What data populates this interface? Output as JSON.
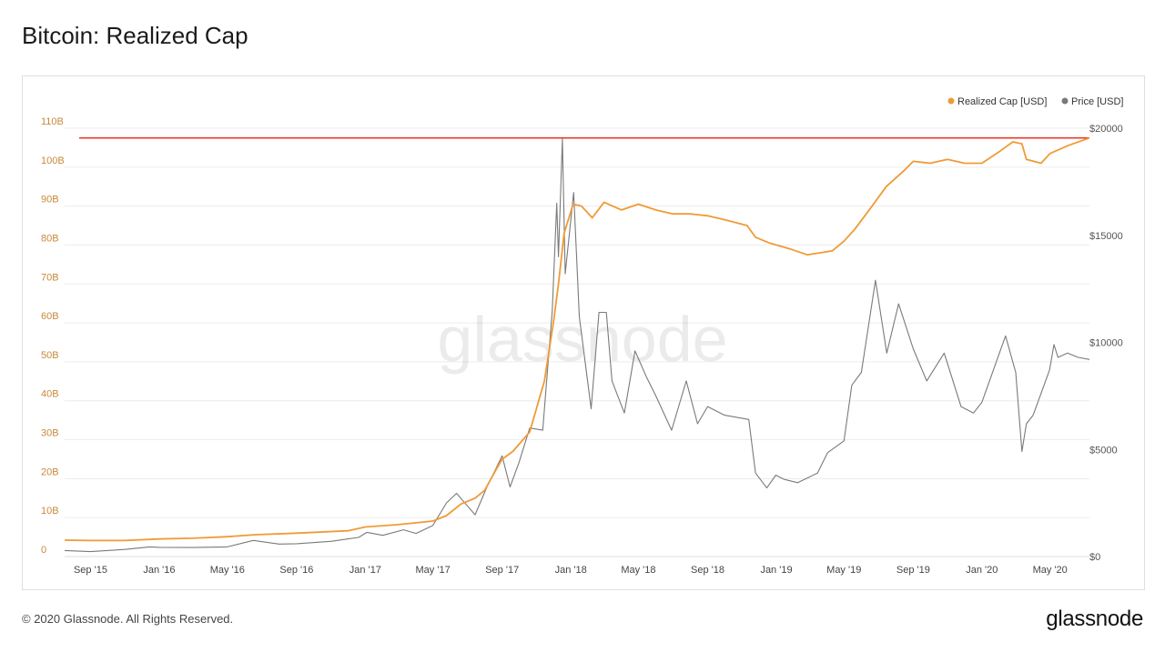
{
  "title": "Bitcoin: Realized Cap",
  "footer": {
    "copyright": "© 2020 Glassnode. All Rights Reserved.",
    "logo": "glassnode"
  },
  "watermark": "glassnode",
  "colors": {
    "realized_cap": "#f09a37",
    "price": "#7a7a7a",
    "reference_line": "#e8392d",
    "left_axis_text": "#c8893a",
    "right_axis_text": "#555555",
    "grid": "#ececec"
  },
  "chart_data": {
    "type": "line",
    "title": "Bitcoin: Realized Cap",
    "legend": [
      "Realized Cap [USD]",
      "Price [USD]"
    ],
    "legend_position": "top-right",
    "grid": true,
    "x_range": [
      "2015-07-17",
      "2020-07-10"
    ],
    "x_ticks": [
      {
        "date": "2015-09-01",
        "label": "Sep '15"
      },
      {
        "date": "2016-01-01",
        "label": "Jan '16"
      },
      {
        "date": "2016-05-01",
        "label": "May '16"
      },
      {
        "date": "2016-09-01",
        "label": "Sep '16"
      },
      {
        "date": "2017-01-01",
        "label": "Jan '17"
      },
      {
        "date": "2017-05-01",
        "label": "May '17"
      },
      {
        "date": "2017-09-01",
        "label": "Sep '17"
      },
      {
        "date": "2018-01-01",
        "label": "Jan '18"
      },
      {
        "date": "2018-05-01",
        "label": "May '18"
      },
      {
        "date": "2018-09-01",
        "label": "Sep '18"
      },
      {
        "date": "2019-01-01",
        "label": "Jan '19"
      },
      {
        "date": "2019-05-01",
        "label": "May '19"
      },
      {
        "date": "2019-09-01",
        "label": "Sep '19"
      },
      {
        "date": "2020-01-01",
        "label": "Jan '20"
      },
      {
        "date": "2020-05-01",
        "label": "May '20"
      }
    ],
    "y_left": {
      "range": [
        0,
        110
      ],
      "unit": "billion USD",
      "ticks": [
        {
          "value": 0,
          "label": "0"
        },
        {
          "value": 10,
          "label": "10B"
        },
        {
          "value": 20,
          "label": "20B"
        },
        {
          "value": 30,
          "label": "30B"
        },
        {
          "value": 40,
          "label": "40B"
        },
        {
          "value": 50,
          "label": "50B"
        },
        {
          "value": 60,
          "label": "60B"
        },
        {
          "value": 70,
          "label": "70B"
        },
        {
          "value": 80,
          "label": "80B"
        },
        {
          "value": 90,
          "label": "90B"
        },
        {
          "value": 100,
          "label": "100B"
        },
        {
          "value": 110,
          "label": "110B"
        }
      ]
    },
    "y_right": {
      "range": [
        0,
        20000
      ],
      "ticks": [
        {
          "value": 0,
          "label": "$0"
        },
        {
          "value": 5000,
          "label": "$5000"
        },
        {
          "value": 10000,
          "label": "$10000"
        },
        {
          "value": 15000,
          "label": "$15000"
        },
        {
          "value": 20000,
          "label": "$20000"
        }
      ]
    },
    "reference_line": {
      "value": 107.5,
      "axis": "left"
    },
    "series": [
      {
        "name": "Realized Cap [USD]",
        "axis": "left",
        "points": [
          [
            "2015-07-17",
            4.2
          ],
          [
            "2015-09-01",
            4.1
          ],
          [
            "2015-11-01",
            4.1
          ],
          [
            "2016-01-01",
            4.5
          ],
          [
            "2016-03-01",
            4.7
          ],
          [
            "2016-05-01",
            5.1
          ],
          [
            "2016-06-20",
            5.6
          ],
          [
            "2016-09-01",
            6.0
          ],
          [
            "2016-12-01",
            6.6
          ],
          [
            "2017-01-01",
            7.6
          ],
          [
            "2017-03-01",
            8.2
          ],
          [
            "2017-05-01",
            9.1
          ],
          [
            "2017-05-25",
            10.5
          ],
          [
            "2017-06-20",
            13.5
          ],
          [
            "2017-07-15",
            15.0
          ],
          [
            "2017-08-01",
            17.0
          ],
          [
            "2017-08-20",
            22.0
          ],
          [
            "2017-09-01",
            25.0
          ],
          [
            "2017-09-20",
            27.0
          ],
          [
            "2017-10-20",
            32.0
          ],
          [
            "2017-11-15",
            45.0
          ],
          [
            "2017-12-01",
            60.0
          ],
          [
            "2017-12-10",
            70.0
          ],
          [
            "2017-12-20",
            83.0
          ],
          [
            "2018-01-05",
            90.5
          ],
          [
            "2018-01-20",
            90.0
          ],
          [
            "2018-02-08",
            87.0
          ],
          [
            "2018-03-01",
            91.0
          ],
          [
            "2018-04-01",
            89.0
          ],
          [
            "2018-05-01",
            90.5
          ],
          [
            "2018-06-01",
            89.0
          ],
          [
            "2018-07-01",
            88.0
          ],
          [
            "2018-08-01",
            88.0
          ],
          [
            "2018-09-01",
            87.5
          ],
          [
            "2018-10-01",
            86.5
          ],
          [
            "2018-11-10",
            85.0
          ],
          [
            "2018-11-25",
            82.0
          ],
          [
            "2018-12-20",
            80.5
          ],
          [
            "2019-01-25",
            79.0
          ],
          [
            "2019-02-25",
            77.5
          ],
          [
            "2019-03-20",
            78.0
          ],
          [
            "2019-04-10",
            78.5
          ],
          [
            "2019-05-01",
            81.0
          ],
          [
            "2019-05-20",
            84.0
          ],
          [
            "2019-06-20",
            90.0
          ],
          [
            "2019-07-15",
            95.0
          ],
          [
            "2019-08-15",
            99.0
          ],
          [
            "2019-09-01",
            101.5
          ],
          [
            "2019-10-01",
            101.0
          ],
          [
            "2019-11-01",
            102.0
          ],
          [
            "2019-12-01",
            101.0
          ],
          [
            "2020-01-01",
            101.0
          ],
          [
            "2020-02-01",
            104.0
          ],
          [
            "2020-02-25",
            106.5
          ],
          [
            "2020-03-12",
            106.0
          ],
          [
            "2020-03-20",
            102.0
          ],
          [
            "2020-04-15",
            101.0
          ],
          [
            "2020-05-01",
            103.5
          ],
          [
            "2020-06-01",
            105.5
          ],
          [
            "2020-07-10",
            107.5
          ]
        ]
      },
      {
        "name": "Price [USD]",
        "axis": "right",
        "points": [
          [
            "2015-07-17",
            280
          ],
          [
            "2015-09-01",
            230
          ],
          [
            "2015-11-01",
            330
          ],
          [
            "2015-12-15",
            450
          ],
          [
            "2016-01-01",
            430
          ],
          [
            "2016-03-01",
            420
          ],
          [
            "2016-05-01",
            450
          ],
          [
            "2016-06-16",
            750
          ],
          [
            "2016-08-01",
            580
          ],
          [
            "2016-09-01",
            600
          ],
          [
            "2016-11-01",
            710
          ],
          [
            "2016-12-20",
            890
          ],
          [
            "2017-01-04",
            1130
          ],
          [
            "2017-02-01",
            990
          ],
          [
            "2017-03-10",
            1250
          ],
          [
            "2017-04-01",
            1080
          ],
          [
            "2017-05-01",
            1450
          ],
          [
            "2017-05-25",
            2500
          ],
          [
            "2017-06-12",
            2950
          ],
          [
            "2017-07-15",
            1950
          ],
          [
            "2017-08-05",
            3250
          ],
          [
            "2017-09-01",
            4700
          ],
          [
            "2017-09-15",
            3250
          ],
          [
            "2017-10-01",
            4400
          ],
          [
            "2017-10-20",
            6000
          ],
          [
            "2017-11-12",
            5900
          ],
          [
            "2017-11-29",
            11500
          ],
          [
            "2017-12-07",
            16500
          ],
          [
            "2017-12-10",
            14000
          ],
          [
            "2017-12-17",
            19500
          ],
          [
            "2017-12-22",
            13200
          ],
          [
            "2018-01-06",
            17000
          ],
          [
            "2018-01-16",
            11200
          ],
          [
            "2018-02-06",
            6900
          ],
          [
            "2018-02-20",
            11400
          ],
          [
            "2018-03-05",
            11400
          ],
          [
            "2018-03-15",
            8200
          ],
          [
            "2018-04-06",
            6700
          ],
          [
            "2018-04-25",
            9600
          ],
          [
            "2018-05-15",
            8400
          ],
          [
            "2018-06-01",
            7500
          ],
          [
            "2018-06-29",
            5900
          ],
          [
            "2018-07-25",
            8200
          ],
          [
            "2018-08-14",
            6200
          ],
          [
            "2018-09-01",
            7000
          ],
          [
            "2018-10-01",
            6600
          ],
          [
            "2018-11-13",
            6400
          ],
          [
            "2018-11-25",
            3900
          ],
          [
            "2018-12-15",
            3200
          ],
          [
            "2018-12-31",
            3800
          ],
          [
            "2019-01-15",
            3600
          ],
          [
            "2019-02-08",
            3450
          ],
          [
            "2019-03-15",
            3900
          ],
          [
            "2019-04-02",
            4850
          ],
          [
            "2019-05-01",
            5400
          ],
          [
            "2019-05-15",
            8000
          ],
          [
            "2019-06-01",
            8600
          ],
          [
            "2019-06-26",
            12900
          ],
          [
            "2019-07-16",
            9500
          ],
          [
            "2019-08-06",
            11800
          ],
          [
            "2019-09-01",
            9700
          ],
          [
            "2019-09-25",
            8200
          ],
          [
            "2019-10-26",
            9500
          ],
          [
            "2019-11-25",
            7000
          ],
          [
            "2019-12-17",
            6700
          ],
          [
            "2020-01-01",
            7200
          ],
          [
            "2020-02-12",
            10300
          ],
          [
            "2020-03-01",
            8600
          ],
          [
            "2020-03-12",
            4900
          ],
          [
            "2020-03-20",
            6200
          ],
          [
            "2020-04-01",
            6600
          ],
          [
            "2020-04-30",
            8700
          ],
          [
            "2020-05-08",
            9900
          ],
          [
            "2020-05-15",
            9300
          ],
          [
            "2020-06-01",
            9500
          ],
          [
            "2020-06-20",
            9300
          ],
          [
            "2020-07-10",
            9200
          ]
        ]
      }
    ]
  }
}
